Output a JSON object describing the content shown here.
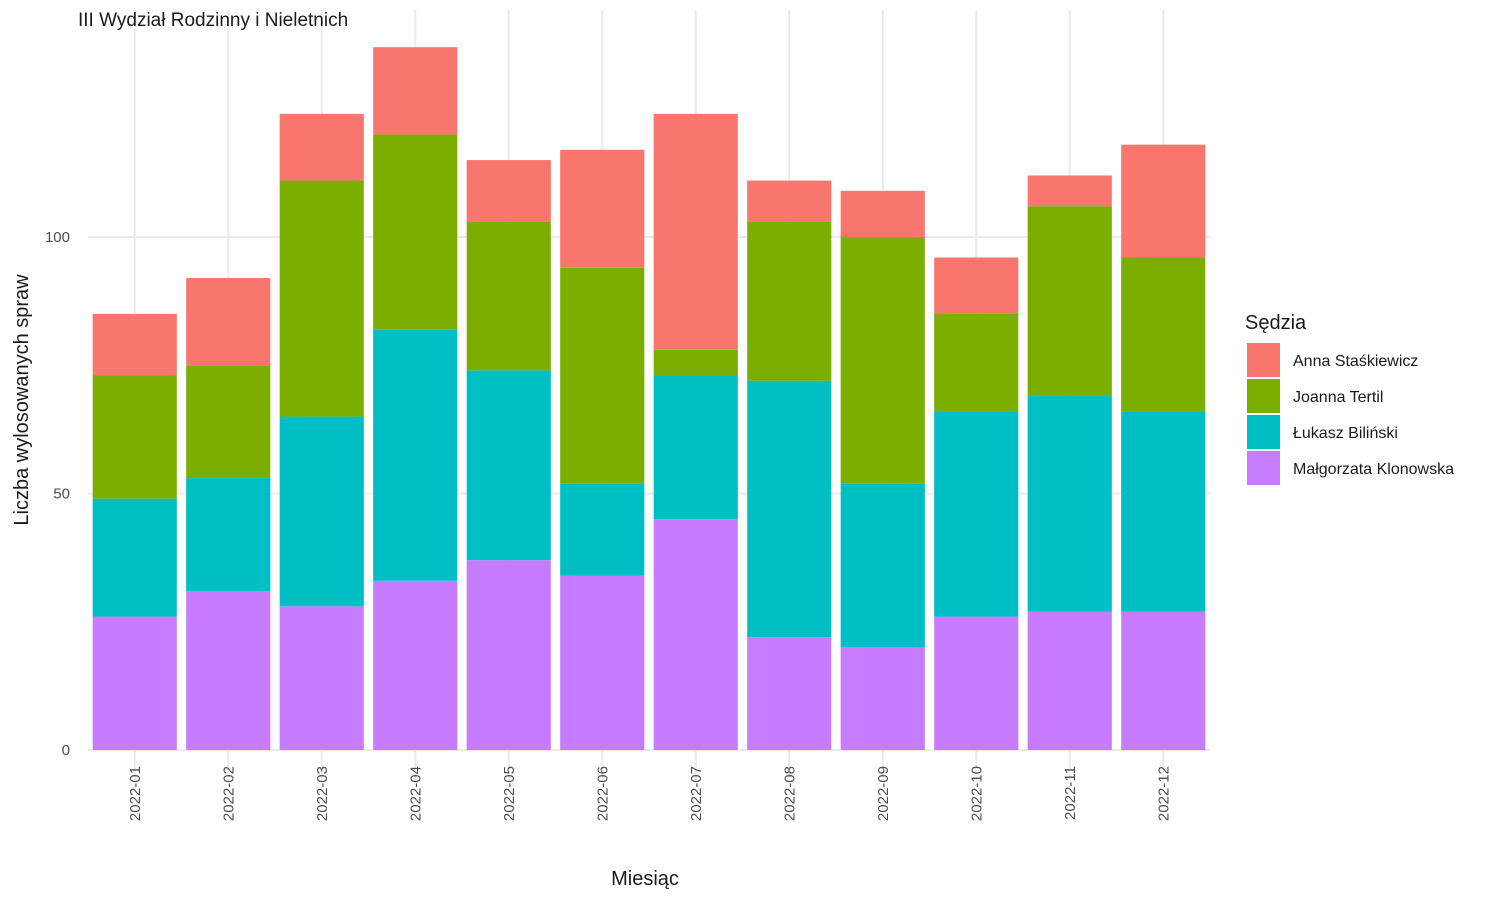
{
  "chart_data": {
    "type": "bar",
    "stacked": true,
    "title": "III Wydział Rodzinny i Nieletnich",
    "xlabel": "Miesiąc",
    "ylabel": "Liczba wylosowanych spraw",
    "ylim": [
      0,
      140
    ],
    "yticks": [
      0,
      50,
      100
    ],
    "grid": true,
    "legend_title": "Sędzia",
    "legend_position": "right",
    "categories": [
      "2022-01",
      "2022-02",
      "2022-03",
      "2022-04",
      "2022-05",
      "2022-06",
      "2022-07",
      "2022-08",
      "2022-09",
      "2022-10",
      "2022-11",
      "2022-12"
    ],
    "series": [
      {
        "name": "Anna Staśkiewicz",
        "color": "#F8766D",
        "values": [
          12,
          17,
          13,
          17,
          12,
          23,
          46,
          8,
          9,
          11,
          6,
          22
        ]
      },
      {
        "name": "Joanna Tertil",
        "color": "#7CAE00",
        "values": [
          24,
          22,
          46,
          38,
          29,
          42,
          5,
          31,
          48,
          19,
          37,
          30
        ]
      },
      {
        "name": "Łukasz Biliński",
        "color": "#00BFC4",
        "values": [
          23,
          22,
          37,
          49,
          37,
          18,
          28,
          50,
          32,
          40,
          42,
          39
        ]
      },
      {
        "name": "Małgorzata Klonowska",
        "color": "#C77CFF",
        "values": [
          26,
          31,
          28,
          33,
          37,
          34,
          45,
          22,
          20,
          26,
          27,
          27
        ]
      }
    ]
  }
}
